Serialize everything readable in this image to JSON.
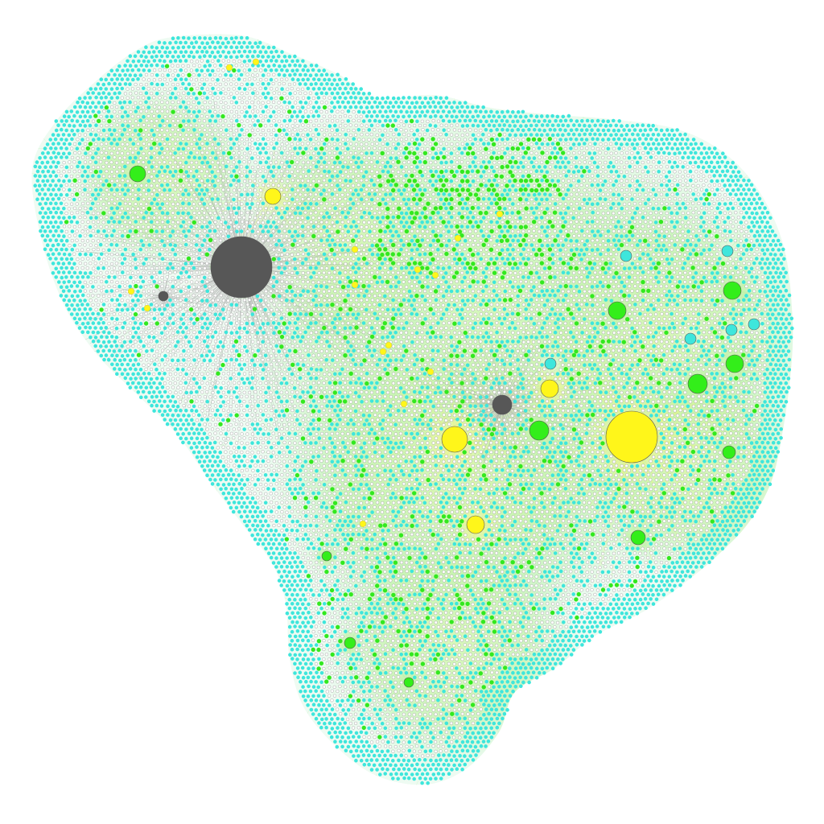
{
  "graph": {
    "type": "network",
    "colors": {
      "background": "#ffffff",
      "hub_dark": "#575757",
      "hub_yellow": "#fff61a",
      "hub_green": "#33ee1a",
      "cyan_node": "#3ee6dc",
      "green_node": "#33e81f",
      "white_node": "#ffffff",
      "node_outline": "#555555",
      "edge_green": "#b8f0a0",
      "edge_yellow": "#eef57a",
      "edge_gray": "#9a9a9a"
    },
    "legend": [],
    "labels": []
  }
}
